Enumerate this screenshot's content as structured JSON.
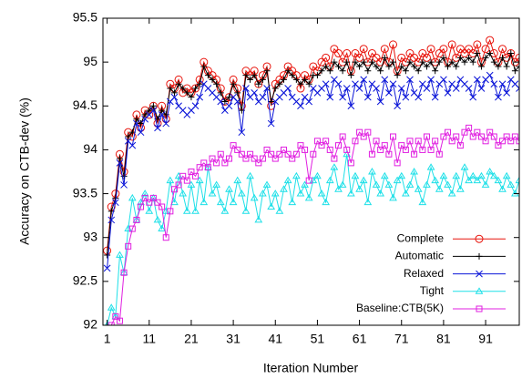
{
  "chart_data": {
    "type": "line",
    "ylabel": "Accuracy on CTB-dev (%)",
    "xlabel": "Iteration Number",
    "x": [
      1,
      2,
      3,
      4,
      5,
      6,
      7,
      8,
      9,
      10,
      11,
      12,
      13,
      14,
      15,
      16,
      17,
      18,
      19,
      20,
      21,
      22,
      23,
      24,
      25,
      26,
      27,
      28,
      29,
      30,
      31,
      32,
      33,
      34,
      35,
      36,
      37,
      38,
      39,
      40,
      41,
      42,
      43,
      44,
      45,
      46,
      47,
      48,
      49,
      50,
      51,
      52,
      53,
      54,
      55,
      56,
      57,
      58,
      59,
      60,
      61,
      62,
      63,
      64,
      65,
      66,
      67,
      68,
      69,
      70,
      71,
      72,
      73,
      74,
      75,
      76,
      77,
      78,
      79,
      80,
      81,
      82,
      83,
      84,
      85,
      86,
      87,
      88,
      89,
      90,
      91,
      92,
      93,
      94,
      95,
      96,
      97,
      98,
      99
    ],
    "xlim": [
      0,
      99
    ],
    "xticks": [
      1,
      11,
      21,
      31,
      41,
      51,
      61,
      71,
      81,
      91
    ],
    "ylim": [
      92,
      95.5
    ],
    "yticks": [
      92,
      92.5,
      93,
      93.5,
      94,
      94.5,
      95,
      95.5
    ],
    "legend": "lower right",
    "series": [
      {
        "name": "Complete",
        "color": "#e8140c",
        "marker": "circle",
        "values": [
          92.85,
          93.35,
          93.5,
          93.95,
          93.75,
          94.2,
          94.15,
          94.4,
          94.25,
          94.45,
          94.4,
          94.5,
          94.3,
          94.5,
          94.35,
          94.75,
          94.7,
          94.8,
          94.65,
          94.7,
          94.65,
          94.7,
          94.8,
          95.0,
          94.9,
          94.85,
          94.8,
          94.7,
          94.55,
          94.6,
          94.8,
          94.7,
          94.5,
          94.9,
          94.85,
          94.9,
          94.75,
          94.85,
          94.95,
          94.5,
          94.75,
          94.8,
          94.85,
          94.95,
          94.9,
          94.85,
          94.7,
          94.85,
          94.8,
          94.95,
          94.9,
          95.0,
          95.05,
          94.95,
          95.15,
          95.1,
          95.0,
          95.1,
          94.9,
          95.1,
          95.05,
          95.15,
          95.0,
          95.1,
          95.05,
          95.0,
          95.15,
          95.0,
          95.2,
          94.9,
          95.05,
          95.0,
          95.1,
          95.05,
          95.0,
          95.1,
          95.05,
          95.15,
          95.0,
          95.1,
          95.15,
          95.0,
          95.2,
          95.05,
          95.15,
          95.1,
          95.15,
          95.1,
          95.2,
          95.0,
          95.15,
          95.25,
          95.1,
          95.0,
          95.15,
          95.05,
          95.1,
          95.0,
          95.05
        ]
      },
      {
        "name": "Automatic",
        "color": "#000000",
        "marker": "plus",
        "values": [
          92.8,
          93.3,
          93.45,
          93.9,
          93.7,
          94.15,
          94.2,
          94.35,
          94.3,
          94.4,
          94.45,
          94.5,
          94.35,
          94.45,
          94.4,
          94.7,
          94.65,
          94.75,
          94.7,
          94.65,
          94.6,
          94.7,
          94.75,
          94.95,
          94.85,
          94.8,
          94.75,
          94.65,
          94.55,
          94.6,
          94.75,
          94.65,
          94.45,
          94.85,
          94.8,
          94.85,
          94.75,
          94.8,
          94.9,
          94.55,
          94.7,
          94.75,
          94.8,
          94.9,
          94.85,
          94.8,
          94.75,
          94.8,
          94.75,
          94.85,
          94.85,
          94.9,
          94.95,
          94.9,
          95.0,
          94.95,
          94.9,
          95.0,
          94.85,
          95.0,
          94.95,
          95.0,
          94.9,
          95.0,
          94.95,
          94.9,
          95.05,
          94.95,
          95.0,
          94.85,
          94.95,
          94.9,
          95.0,
          94.95,
          94.9,
          95.0,
          94.95,
          95.0,
          94.9,
          95.0,
          95.05,
          94.95,
          95.0,
          94.95,
          95.05,
          95.0,
          95.05,
          95.0,
          95.1,
          94.95,
          95.05,
          95.1,
          95.0,
          94.95,
          95.05,
          94.95,
          95.1,
          94.9,
          94.95
        ]
      },
      {
        "name": "Relaxed",
        "color": "#0a14d8",
        "marker": "x",
        "values": [
          92.65,
          93.2,
          93.4,
          93.85,
          93.6,
          94.1,
          94.05,
          94.3,
          94.2,
          94.35,
          94.4,
          94.45,
          94.25,
          94.4,
          94.3,
          94.55,
          94.6,
          94.5,
          94.45,
          94.4,
          94.45,
          94.5,
          94.6,
          94.75,
          94.7,
          94.65,
          94.6,
          94.55,
          94.45,
          94.5,
          94.6,
          94.55,
          94.2,
          94.7,
          94.6,
          94.65,
          94.55,
          94.6,
          94.7,
          94.3,
          94.55,
          94.6,
          94.65,
          94.7,
          94.6,
          94.55,
          94.5,
          94.6,
          94.55,
          94.7,
          94.65,
          94.7,
          94.75,
          94.6,
          94.8,
          94.75,
          94.6,
          94.7,
          94.5,
          94.75,
          94.7,
          94.8,
          94.6,
          94.75,
          94.7,
          94.55,
          94.8,
          94.65,
          94.75,
          94.5,
          94.7,
          94.6,
          94.8,
          94.65,
          94.6,
          94.75,
          94.7,
          94.8,
          94.6,
          94.75,
          94.8,
          94.65,
          94.75,
          94.7,
          94.8,
          94.75,
          94.7,
          94.6,
          94.8,
          94.7,
          94.8,
          94.85,
          94.75,
          94.6,
          94.75,
          94.65,
          94.8,
          94.75,
          94.7
        ]
      },
      {
        "name": "Tight",
        "color": "#1ee0e8",
        "marker": "triangle",
        "values": [
          92.0,
          92.2,
          92.1,
          92.8,
          92.6,
          93.1,
          93.45,
          93.2,
          93.4,
          93.5,
          93.3,
          93.45,
          93.2,
          93.1,
          93.3,
          93.65,
          93.4,
          93.7,
          93.5,
          93.3,
          93.6,
          93.3,
          93.65,
          93.4,
          93.8,
          93.5,
          93.6,
          93.4,
          93.3,
          93.55,
          93.4,
          93.65,
          93.5,
          93.3,
          93.7,
          93.45,
          93.2,
          93.5,
          93.6,
          93.35,
          93.5,
          93.3,
          93.55,
          93.65,
          93.4,
          93.7,
          93.5,
          93.6,
          93.45,
          93.65,
          93.7,
          93.5,
          93.4,
          93.65,
          93.8,
          93.55,
          93.6,
          93.95,
          93.5,
          93.7,
          93.55,
          93.65,
          93.4,
          93.75,
          93.6,
          93.5,
          93.7,
          93.6,
          93.45,
          93.65,
          93.7,
          93.5,
          93.6,
          93.75,
          93.55,
          93.4,
          93.6,
          93.8,
          93.65,
          93.55,
          93.7,
          93.6,
          93.5,
          93.7,
          93.55,
          93.8,
          93.65,
          93.7,
          93.65,
          93.7,
          93.6,
          93.75,
          93.7,
          93.65,
          93.55,
          93.7,
          93.6,
          93.5,
          93.65
        ]
      },
      {
        "name": "Baseline:CTB(5K)",
        "color": "#e020e0",
        "marker": "square",
        "values": [
          91.9,
          92.0,
          92.1,
          92.05,
          92.6,
          92.9,
          93.1,
          93.2,
          93.35,
          93.45,
          93.4,
          93.45,
          93.4,
          93.35,
          93.0,
          93.3,
          93.55,
          93.6,
          93.7,
          93.65,
          93.75,
          93.7,
          93.8,
          93.85,
          93.8,
          93.9,
          93.85,
          93.95,
          93.85,
          93.9,
          94.05,
          94.0,
          93.95,
          93.9,
          93.95,
          93.9,
          93.85,
          93.9,
          94.0,
          93.95,
          93.9,
          93.95,
          94.0,
          93.95,
          93.9,
          93.95,
          94.05,
          94.0,
          93.65,
          93.95,
          94.1,
          94.05,
          94.1,
          94.0,
          93.9,
          94.05,
          94.15,
          94.0,
          93.85,
          94.1,
          94.2,
          94.15,
          94.2,
          93.95,
          94.1,
          94.0,
          94.05,
          93.95,
          94.15,
          93.85,
          94.05,
          94.0,
          94.1,
          93.95,
          94.1,
          94.0,
          94.15,
          94.0,
          94.1,
          93.95,
          94.15,
          94.2,
          94.1,
          94.15,
          94.05,
          94.2,
          94.25,
          94.15,
          94.2,
          94.15,
          94.1,
          94.2,
          94.15,
          94.05,
          94.1,
          94.15,
          94.1,
          94.15,
          94.1
        ]
      }
    ]
  }
}
